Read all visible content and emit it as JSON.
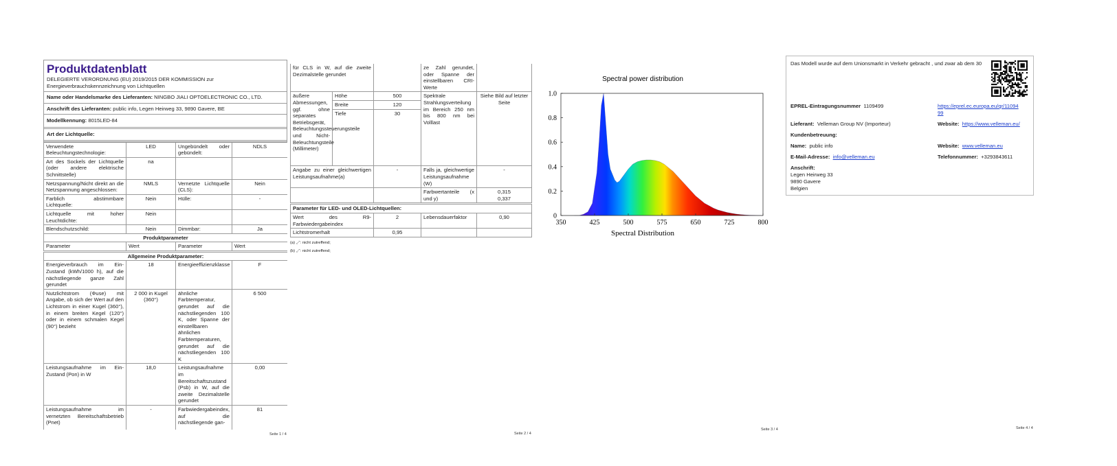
{
  "page1": {
    "title": "Produktdatenblatt",
    "regulation": "DELEGIERTE VERORDNUNG (EU) 2019/2015 DER KOMMISSION zur Energieverbrauchskennzeichnung von Lichtquellen",
    "info": [
      [
        "Name oder Handelsmarke des Lieferanten:",
        "NINGBO JIALI OPTOELECTRONIC CO., LTD."
      ],
      [
        "Anschrift des Lieferanten:",
        "public info, Legen Heirweg 33, 9890 Gavere, BE"
      ],
      [
        "Modellkennung:",
        "8015LED-84"
      ]
    ],
    "light_source_heading": "Art der Lichtquelle:",
    "light_source_rows": [
      [
        "Verwendete Beleuchtungstechnologie:",
        "LED",
        "Ungebündelt oder gebündelt:",
        "NDLS"
      ],
      [
        "Art des Sockels der Lichtquelle (oder andere elektrische Schnittstelle)",
        "na"
      ],
      [
        "Netzspannung/Nicht direkt an die Netzspannung angeschlossen:",
        "NMLS",
        "Vernetzte Lichtquelle (CLS):",
        "Nein"
      ],
      [
        "Farblich abstimmbare Lichtquelle:",
        "Nein",
        "Hülle:",
        "-"
      ],
      [
        "Lichtquelle mit hoher Leuchtdichte:",
        "Nein"
      ],
      [
        "Blendschutzschild:",
        "Nein",
        "Dimmbar:",
        "Ja"
      ]
    ],
    "product_parameters_heading": "Produktparameter",
    "column_headers": [
      "Parameter",
      "Wert",
      "Parameter",
      "Wert"
    ],
    "general_parameters_heading": "Allgemeine Produktparameter:",
    "parameter_rows": [
      [
        "Energieverbrauch im Ein-Zustand (kWh/1000 h), auf die nächstliegende ganze Zahl gerundet",
        "18",
        "Energieeffizienzklasse",
        "F"
      ],
      [
        "Nutzlichtstrom (Φuse) mit Angabe, ob sich der Wert auf den Lichtstrom in einer Kugel (360°), in einem breiten Kegel (120°) oder in einem schmalen Kegel (90°) bezieht",
        "2 000 in Kugel (360°)",
        "ähnliche Farbtemperatur, gerundet auf die nächstliegenden 100 K, oder Spanne der einstellbaren ähnlichen Farbtemperaturen, gerundet auf die nächstliegenden 100 K",
        "6 500"
      ],
      [
        "Leistungsaufnahme im Ein-Zustand (Pon) in W",
        "18,0",
        "Leistungsaufnahme im Bereitschaftszustand (Psb) in W, auf die zweite Dezimalstelle gerundet",
        "0,00"
      ],
      [
        "Leistungsaufnahme im vernetzten Bereitschaftsbetrieb (Pnet)",
        "-",
        "Farbwiedergabeindex, auf die nächstliegende gan-",
        "81"
      ]
    ],
    "footer": "Seite 1 / 4"
  },
  "page2": {
    "row_continued": [
      "für CLS in W, auf die zweite Dezimalstelle gerundet",
      "ze Zahl gerundet, oder Spanne der einstellbaren CRI-Werte"
    ],
    "dimensions_label": "äußere Abmessungen, ggf. ohne separates Betriebsgerät, Beleuchtungssteuerungsteile und Nicht-Beleuchtungsteile (Millimeter)",
    "dimensions": [
      [
        "Höhe",
        "500"
      ],
      [
        "Breite",
        "120"
      ],
      [
        "Tiefe",
        "30"
      ]
    ],
    "spectrum_label": "Spektrale Strahlungsverteilung im Bereich 250 nm bis 800 nm bei Volllast",
    "spectrum_value": "Siehe Bild auf letzter Seite",
    "equivalent_row": [
      "Angabe zu einer gleichwertigen Leistungsaufnahme(a)",
      "-",
      "Falls ja, gleichwertige Leistungsaufnahme (W)",
      "-"
    ],
    "chromaticity_row": [
      "Farbwertanteile (x und y)",
      "0,315",
      "0,337"
    ],
    "led_heading": "Parameter für LED- und OLED-Lichtquellen:",
    "led_rows": [
      [
        "Wert des R9-Farbwiedergabeindex",
        "2",
        "Lebensdauerfaktor",
        "0,90"
      ],
      [
        "Lichtstromerhalt",
        "0,95"
      ]
    ],
    "footnotes": [
      "(a) „-“: nicht zutreffend;",
      "(b) „-“: nicht zutreffend;"
    ],
    "footer": "Seite 2 / 4"
  },
  "chart_data": {
    "type": "area",
    "title": "Spectral power distribution",
    "xlabel": "Spectral Distribution",
    "x": [
      380,
      390,
      400,
      410,
      420,
      430,
      435,
      440,
      445,
      450,
      455,
      460,
      470,
      475,
      480,
      490,
      500,
      510,
      520,
      530,
      540,
      550,
      560,
      570,
      580,
      590,
      600,
      610,
      620,
      630,
      640,
      650,
      660,
      670,
      680,
      690,
      700,
      710,
      720,
      730,
      740,
      750,
      760,
      770,
      780,
      790,
      800
    ],
    "values": [
      0,
      0,
      0.01,
      0.03,
      0.1,
      0.35,
      0.6,
      0.9,
      1.0,
      0.75,
      0.5,
      0.38,
      0.29,
      0.27,
      0.28,
      0.33,
      0.38,
      0.42,
      0.44,
      0.45,
      0.455,
      0.455,
      0.45,
      0.44,
      0.42,
      0.39,
      0.36,
      0.32,
      0.28,
      0.24,
      0.2,
      0.16,
      0.13,
      0.1,
      0.08,
      0.06,
      0.045,
      0.035,
      0.025,
      0.018,
      0.012,
      0.008,
      0.005,
      0.003,
      0.002,
      0.001,
      0
    ],
    "xlim": [
      350,
      800
    ],
    "ylim": [
      0,
      1
    ],
    "xticks": [
      350,
      425,
      500,
      575,
      650,
      725,
      800
    ],
    "yticks": [
      0,
      0.2,
      0.4,
      0.6,
      0.8,
      {
        "value": 1,
        "label": "1.0"
      }
    ],
    "footer": "Seite 3 / 4"
  },
  "page4": {
    "market_text": "Das Modell wurde auf dem Unionsmarkt in Verkehr gebracht , und zwar ab dem 30",
    "eprel_label": "EPREL-Eintragungsnummer",
    "eprel_number": "1109499",
    "eprel_link": "https://eprel.ec.europa.eu/qr/1109499",
    "supplier_label": "Lieferant:",
    "supplier": "Velleman Group NV (Importeur)",
    "website_label": "Website:",
    "website": "https://www.velleman.eu/",
    "customer_service_heading": "Kundenbetreuung:",
    "name_label": "Name:",
    "name": "public info",
    "service_website_label": "Website:",
    "service_website": "www.velleman.eu",
    "email_label": "E-Mail-Adresse:",
    "email": "info@velleman.eu",
    "phone_label": "Telefonnummer:",
    "phone": "+3293843611",
    "address_heading": "Anschrift:",
    "address": [
      "Legen Heirweg 33",
      "9890 Gavere",
      "Belgien"
    ],
    "footer": "Seite 4 / 4"
  }
}
